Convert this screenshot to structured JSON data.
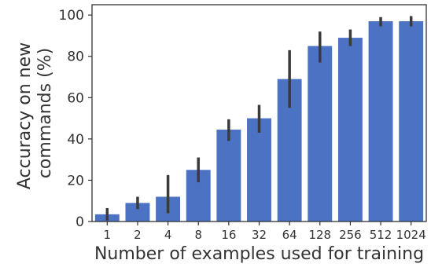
{
  "chart_data": {
    "type": "bar",
    "categories": [
      "1",
      "2",
      "4",
      "8",
      "16",
      "32",
      "64",
      "128",
      "256",
      "512",
      "1024"
    ],
    "values": [
      3.5,
      9,
      12,
      25,
      44.5,
      50,
      69,
      85,
      89,
      97,
      97
    ],
    "error_bars": [
      [
        0.5,
        6.5
      ],
      [
        6,
        12
      ],
      [
        4,
        22.5
      ],
      [
        19,
        31
      ],
      [
        39,
        49.5
      ],
      [
        43,
        56.5
      ],
      [
        55,
        83
      ],
      [
        77,
        92
      ],
      [
        85,
        93
      ],
      [
        94.5,
        99
      ],
      [
        94.5,
        99.5
      ]
    ],
    "xlabel": "Number of examples used for training",
    "ylabel_lines": [
      "Accuracy on new",
      "commands (%)"
    ],
    "ylim": [
      0,
      105
    ],
    "yticks": [
      0,
      20,
      40,
      60,
      80,
      100
    ],
    "bar_color": "#4c72c4",
    "error_bar_color": "#3a3a3a",
    "grid": false
  }
}
